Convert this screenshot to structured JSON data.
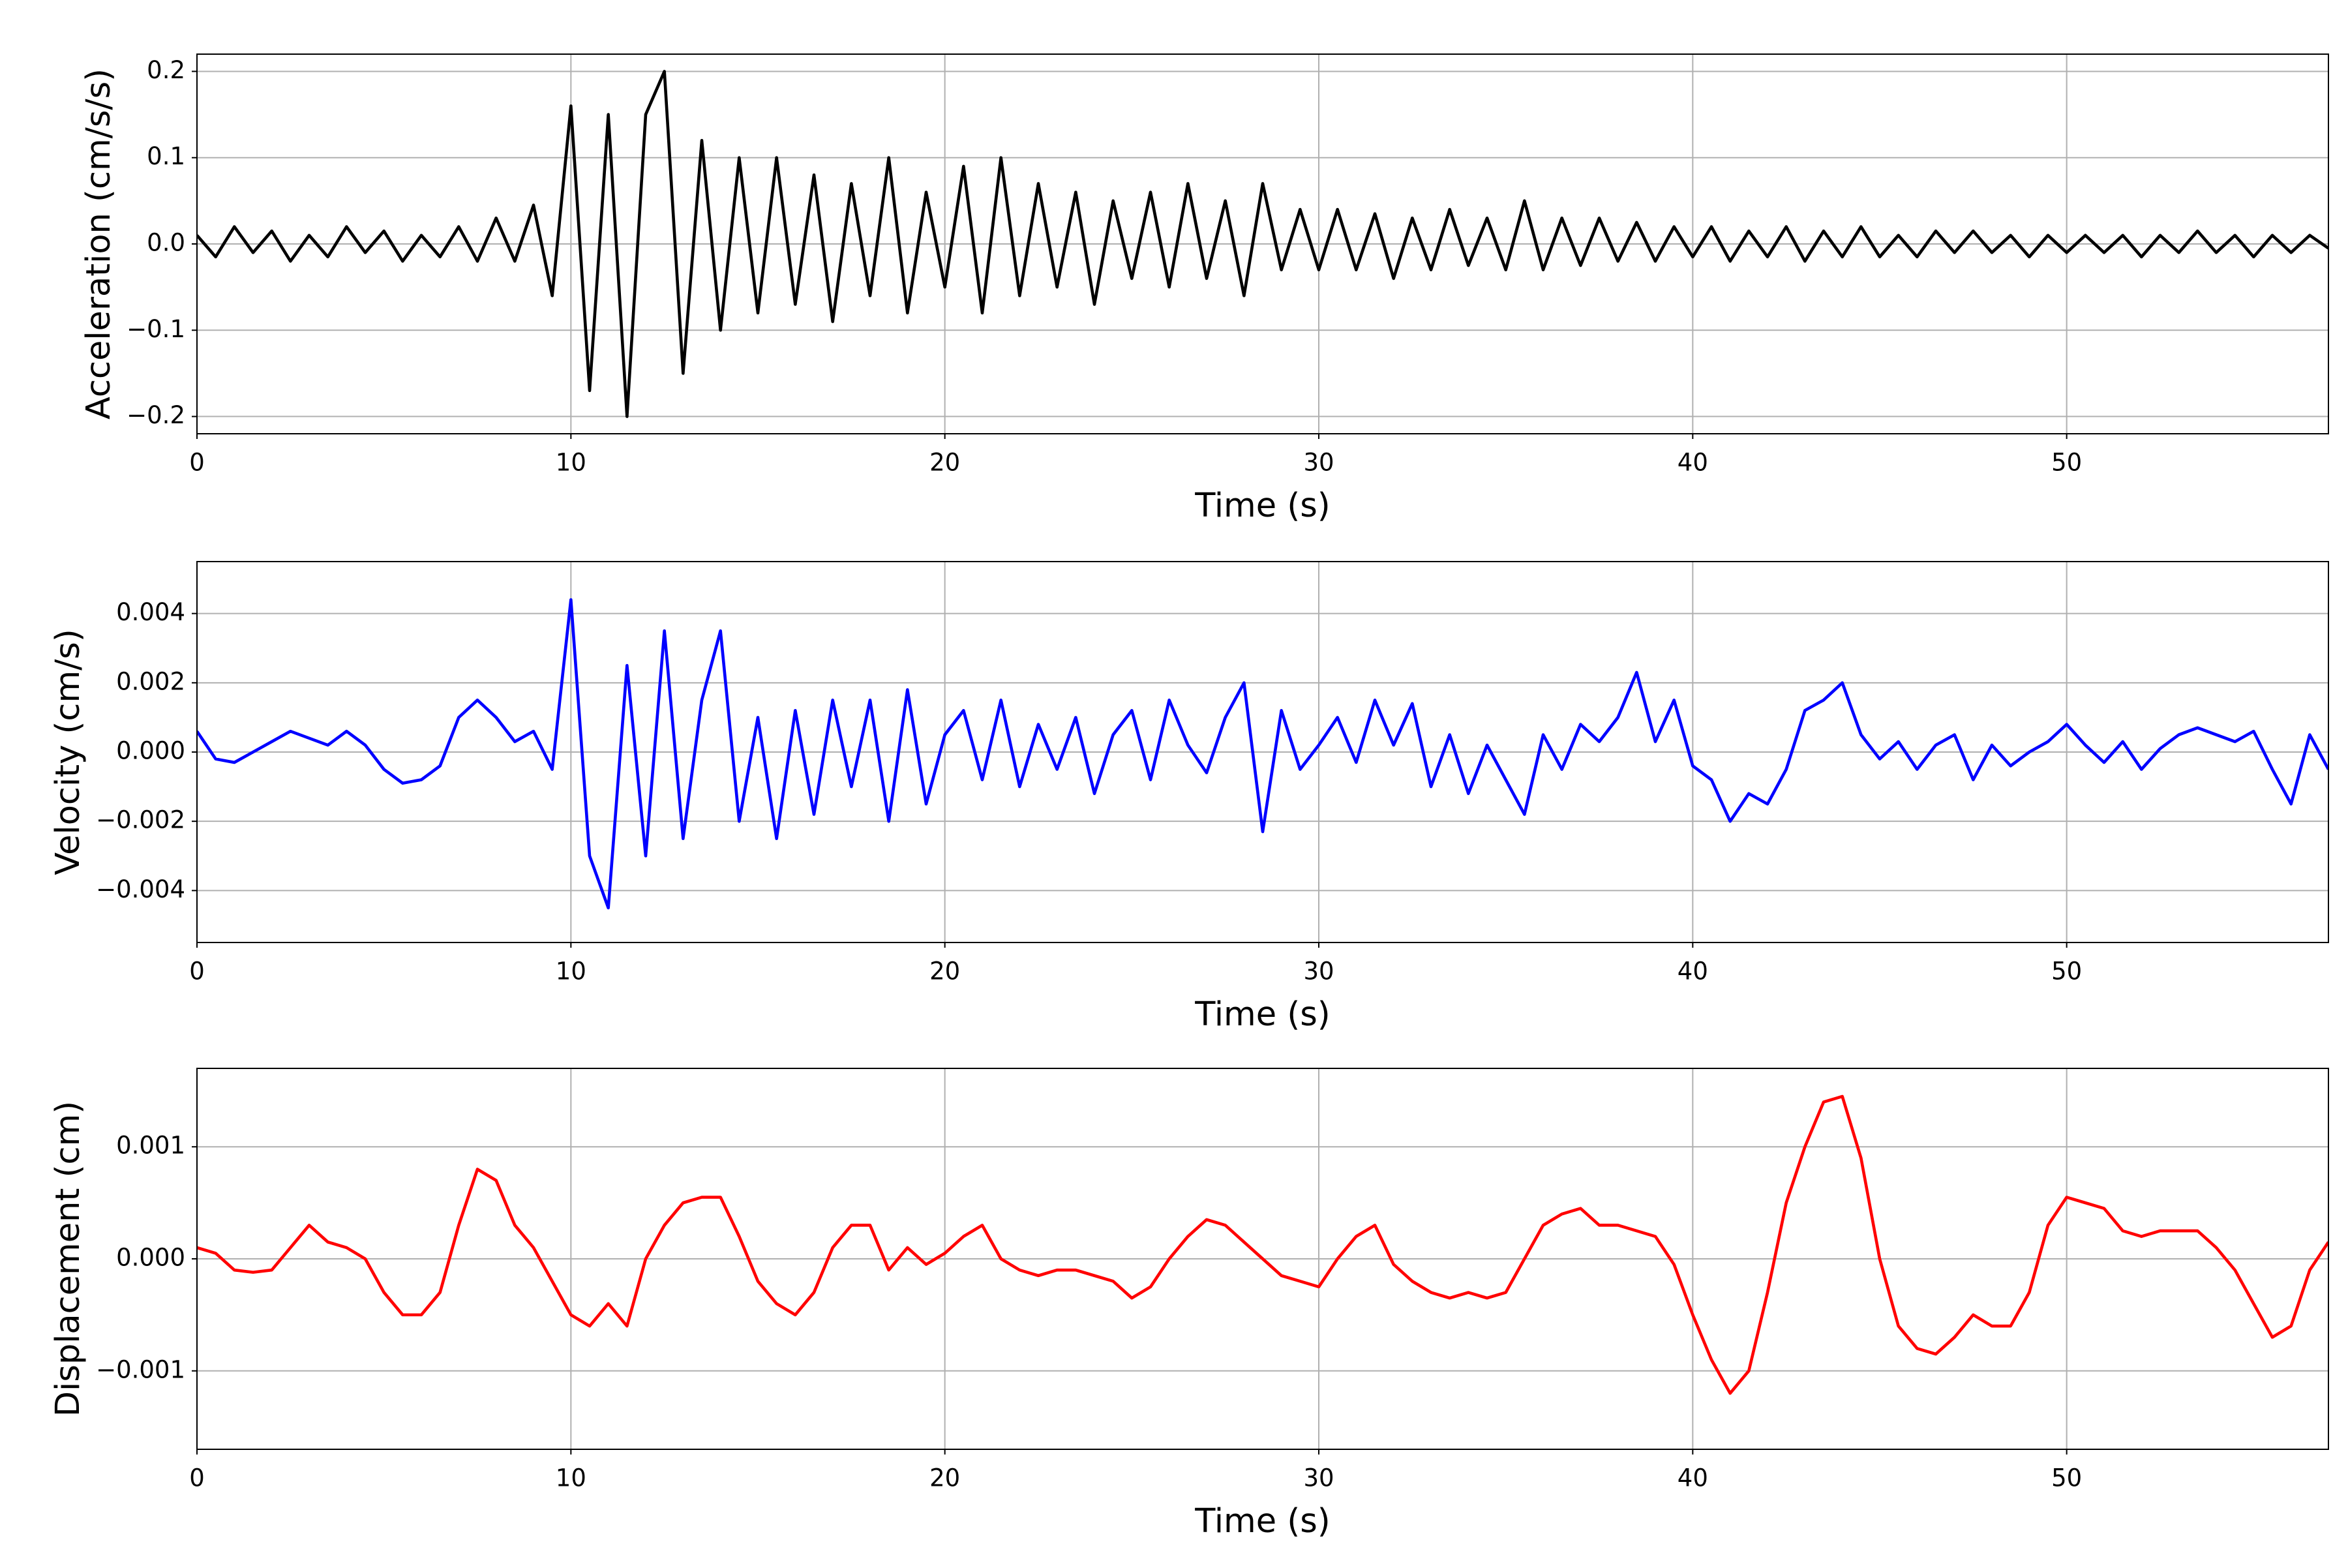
{
  "chart_data": [
    {
      "type": "line",
      "xlabel": "Time (s)",
      "ylabel": "Acceleration (cm/s/s)",
      "color": "#000000",
      "x": [
        0,
        0.5,
        1,
        1.5,
        2,
        2.5,
        3,
        3.5,
        4,
        4.5,
        5,
        5.5,
        6,
        6.5,
        7,
        7.5,
        8,
        8.5,
        9,
        9.5,
        10,
        10.5,
        11,
        11.5,
        12,
        12.5,
        13,
        13.5,
        14,
        14.5,
        15,
        15.5,
        16,
        16.5,
        17,
        17.5,
        18,
        18.5,
        19,
        19.5,
        20,
        20.5,
        21,
        21.5,
        22,
        22.5,
        23,
        23.5,
        24,
        24.5,
        25,
        25.5,
        26,
        26.5,
        27,
        27.5,
        28,
        28.5,
        29,
        29.5,
        30,
        30.5,
        31,
        31.5,
        32,
        32.5,
        33,
        33.5,
        34,
        34.5,
        35,
        35.5,
        36,
        36.5,
        37,
        37.5,
        38,
        38.5,
        39,
        39.5,
        40,
        40.5,
        41,
        41.5,
        42,
        42.5,
        43,
        43.5,
        44,
        44.5,
        45,
        45.5,
        46,
        46.5,
        47,
        47.5,
        48,
        48.5,
        49,
        49.5,
        50,
        50.5,
        51,
        51.5,
        52,
        52.5,
        53,
        53.5,
        54,
        54.5,
        55,
        55.5,
        56,
        56.5,
        57
      ],
      "values": [
        0.01,
        -0.015,
        0.02,
        -0.01,
        0.015,
        -0.02,
        0.01,
        -0.015,
        0.02,
        -0.01,
        0.015,
        -0.02,
        0.01,
        -0.015,
        0.02,
        -0.02,
        0.03,
        -0.02,
        0.045,
        -0.06,
        0.16,
        -0.17,
        0.15,
        -0.2,
        0.15,
        0.2,
        -0.15,
        0.12,
        -0.1,
        0.1,
        -0.08,
        0.1,
        -0.07,
        0.08,
        -0.09,
        0.07,
        -0.06,
        0.1,
        -0.08,
        0.06,
        -0.05,
        0.09,
        -0.08,
        0.1,
        -0.06,
        0.07,
        -0.05,
        0.06,
        -0.07,
        0.05,
        -0.04,
        0.06,
        -0.05,
        0.07,
        -0.04,
        0.05,
        -0.06,
        0.07,
        -0.03,
        0.04,
        -0.03,
        0.04,
        -0.03,
        0.035,
        -0.04,
        0.03,
        -0.03,
        0.04,
        -0.025,
        0.03,
        -0.03,
        0.05,
        -0.03,
        0.03,
        -0.025,
        0.03,
        -0.02,
        0.025,
        -0.02,
        0.02,
        -0.015,
        0.02,
        -0.02,
        0.015,
        -0.015,
        0.02,
        -0.02,
        0.015,
        -0.015,
        0.02,
        -0.015,
        0.01,
        -0.015,
        0.015,
        -0.01,
        0.015,
        -0.01,
        0.01,
        -0.015,
        0.01,
        -0.01,
        0.01,
        -0.01,
        0.01,
        -0.015,
        0.01,
        -0.01,
        0.015,
        -0.01,
        0.01,
        -0.015,
        0.01,
        -0.01,
        0.01,
        -0.005
      ],
      "xlim": [
        0,
        57
      ],
      "xticks": [
        0,
        10,
        20,
        30,
        40,
        50
      ],
      "ylim": [
        -0.22,
        0.22
      ],
      "yticks": [
        {
          "value": -0.2,
          "label": "−0.2"
        },
        {
          "value": -0.1,
          "label": "−0.1"
        },
        {
          "value": 0,
          "label": "0.0"
        },
        0.1,
        0.2
      ],
      "grid": true
    },
    {
      "type": "line",
      "xlabel": "Time (s)",
      "ylabel": "Velocity (cm/s)",
      "color": "#0000ff",
      "x": [
        0,
        0.5,
        1,
        1.5,
        2,
        2.5,
        3,
        3.5,
        4,
        4.5,
        5,
        5.5,
        6,
        6.5,
        7,
        7.5,
        8,
        8.5,
        9,
        9.5,
        10,
        10.5,
        11,
        11.5,
        12,
        12.5,
        13,
        13.5,
        14,
        14.5,
        15,
        15.5,
        16,
        16.5,
        17,
        17.5,
        18,
        18.5,
        19,
        19.5,
        20,
        20.5,
        21,
        21.5,
        22,
        22.5,
        23,
        23.5,
        24,
        24.5,
        25,
        25.5,
        26,
        26.5,
        27,
        27.5,
        28,
        28.5,
        29,
        29.5,
        30,
        30.5,
        31,
        31.5,
        32,
        32.5,
        33,
        33.5,
        34,
        34.5,
        35,
        35.5,
        36,
        36.5,
        37,
        37.5,
        38,
        38.5,
        39,
        39.5,
        40,
        40.5,
        41,
        41.5,
        42,
        42.5,
        43,
        43.5,
        44,
        44.5,
        45,
        45.5,
        46,
        46.5,
        47,
        47.5,
        48,
        48.5,
        49,
        49.5,
        50,
        50.5,
        51,
        51.5,
        52,
        52.5,
        53,
        53.5,
        54,
        54.5,
        55,
        55.5,
        56,
        56.5,
        57
      ],
      "values": [
        0.0006,
        -0.0002,
        -0.0003,
        0,
        0.0003,
        0.0006,
        0.0004,
        0.0002,
        0.0006,
        0.0002,
        -0.0005,
        -0.0009,
        -0.0008,
        -0.0004,
        0.001,
        0.0015,
        0.001,
        0.0003,
        0.0006,
        -0.0005,
        0.0044,
        -0.003,
        -0.0045,
        0.0025,
        -0.003,
        0.0035,
        -0.0025,
        0.0015,
        0.0035,
        -0.002,
        0.001,
        -0.0025,
        0.0012,
        -0.0018,
        0.0015,
        -0.001,
        0.0015,
        -0.002,
        0.0018,
        -0.0015,
        0.0005,
        0.0012,
        -0.0008,
        0.0015,
        -0.001,
        0.0008,
        -0.0005,
        0.001,
        -0.0012,
        0.0005,
        0.0012,
        -0.0008,
        0.0015,
        0.0002,
        -0.0006,
        0.001,
        0.002,
        -0.0023,
        0.0012,
        -0.0005,
        0.0002,
        0.001,
        -0.0003,
        0.0015,
        0.0002,
        0.0014,
        -0.001,
        0.0005,
        -0.0012,
        0.0002,
        -0.0008,
        -0.0018,
        0.0005,
        -0.0005,
        0.0008,
        0.0003,
        0.001,
        0.0023,
        0.0003,
        0.0015,
        -0.0004,
        -0.0008,
        -0.002,
        -0.0012,
        -0.0015,
        -0.0005,
        0.0012,
        0.0015,
        0.002,
        0.0005,
        -0.0002,
        0.0003,
        -0.0005,
        0.0002,
        0.0005,
        -0.0008,
        0.0002,
        -0.0004,
        0,
        0.0003,
        0.0008,
        0.0002,
        -0.0003,
        0.0003,
        -0.0005,
        0.0001,
        0.0005,
        0.0007,
        0.0005,
        0.0003,
        0.0006,
        -0.0005,
        -0.0015,
        0.0005,
        -0.0005
      ],
      "xlim": [
        0,
        57
      ],
      "xticks": [
        0,
        10,
        20,
        30,
        40,
        50
      ],
      "ylim": [
        -0.0055,
        0.0055
      ],
      "yticks": [
        {
          "value": -0.004,
          "label": "−0.004"
        },
        {
          "value": -0.002,
          "label": "−0.002"
        },
        {
          "value": 0,
          "label": "0.000"
        },
        {
          "value": 0.002,
          "label": "0.002"
        },
        {
          "value": 0.004,
          "label": "0.004"
        }
      ],
      "grid": true
    },
    {
      "type": "line",
      "xlabel": "Time (s)",
      "ylabel": "Displacement (cm)",
      "color": "#ff0000",
      "x": [
        0,
        0.5,
        1,
        1.5,
        2,
        2.5,
        3,
        3.5,
        4,
        4.5,
        5,
        5.5,
        6,
        6.5,
        7,
        7.5,
        8,
        8.5,
        9,
        9.5,
        10,
        10.5,
        11,
        11.5,
        12,
        12.5,
        13,
        13.5,
        14,
        14.5,
        15,
        15.5,
        16,
        16.5,
        17,
        17.5,
        18,
        18.5,
        19,
        19.5,
        20,
        20.5,
        21,
        21.5,
        22,
        22.5,
        23,
        23.5,
        24,
        24.5,
        25,
        25.5,
        26,
        26.5,
        27,
        27.5,
        28,
        28.5,
        29,
        29.5,
        30,
        30.5,
        31,
        31.5,
        32,
        32.5,
        33,
        33.5,
        34,
        34.5,
        35,
        35.5,
        36,
        36.5,
        37,
        37.5,
        38,
        38.5,
        39,
        39.5,
        40,
        40.5,
        41,
        41.5,
        42,
        42.5,
        43,
        43.5,
        44,
        44.5,
        45,
        45.5,
        46,
        46.5,
        47,
        47.5,
        48,
        48.5,
        49,
        49.5,
        50,
        50.5,
        51,
        51.5,
        52,
        52.5,
        53,
        53.5,
        54,
        54.5,
        55,
        55.5,
        56,
        56.5,
        57
      ],
      "values": [
        0.0001,
        5e-05,
        -0.0001,
        -0.00012,
        -0.0001,
        0.0001,
        0.0003,
        0.00015,
        0.0001,
        0,
        -0.0003,
        -0.0005,
        -0.0005,
        -0.0003,
        0.0003,
        0.0008,
        0.0007,
        0.0003,
        0.0001,
        -0.0002,
        -0.0005,
        -0.0006,
        -0.0004,
        -0.0006,
        0,
        0.0003,
        0.0005,
        0.00055,
        0.00055,
        0.0002,
        -0.0002,
        -0.0004,
        -0.0005,
        -0.0003,
        0.0001,
        0.0003,
        0.0003,
        -0.0001,
        0.0001,
        -5e-05,
        5e-05,
        0.0002,
        0.0003,
        0,
        -0.0001,
        -0.00015,
        -0.0001,
        -0.0001,
        -0.00015,
        -0.0002,
        -0.00035,
        -0.00025,
        0,
        0.0002,
        0.00035,
        0.0003,
        0.00015,
        0,
        -0.00015,
        -0.0002,
        -0.00025,
        0,
        0.0002,
        0.0003,
        -5e-05,
        -0.0002,
        -0.0003,
        -0.00035,
        -0.0003,
        -0.00035,
        -0.0003,
        0,
        0.0003,
        0.0004,
        0.00045,
        0.0003,
        0.0003,
        0.00025,
        0.0002,
        -5e-05,
        -0.0005,
        -0.0009,
        -0.0012,
        -0.001,
        -0.0003,
        0.0005,
        0.001,
        0.0014,
        0.00145,
        0.0009,
        0,
        -0.0006,
        -0.0008,
        -0.00085,
        -0.0007,
        -0.0005,
        -0.0006,
        -0.0006,
        -0.0003,
        0.0003,
        0.00055,
        0.0005,
        0.00045,
        0.00025,
        0.0002,
        0.00025,
        0.00025,
        0.00025,
        0.0001,
        -0.0001,
        -0.0004,
        -0.0007,
        -0.0006,
        -0.0001,
        0.00015
      ],
      "xlim": [
        0,
        57
      ],
      "xticks": [
        0,
        10,
        20,
        30,
        40,
        50
      ],
      "ylim": [
        -0.0017,
        0.0017
      ],
      "yticks": [
        {
          "value": -0.001,
          "label": "−0.001"
        },
        {
          "value": 0,
          "label": "0.000"
        },
        {
          "value": 0.001,
          "label": "0.001"
        }
      ],
      "grid": true
    }
  ]
}
